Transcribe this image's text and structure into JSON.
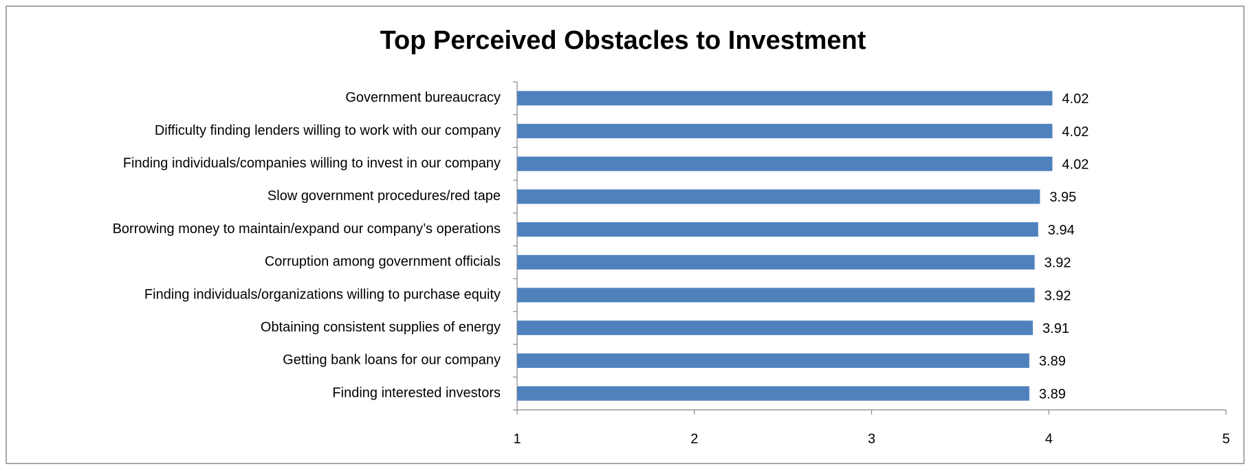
{
  "chart_data": {
    "type": "bar",
    "orientation": "horizontal",
    "title": "Top Perceived Obstacles to Investment",
    "categories": [
      "Government bureaucracy",
      "Difficulty finding lenders willing to work with our company",
      "Finding individuals/companies willing to invest in our company",
      "Slow government procedures/red tape",
      "Borrowing money to maintain/expand our company’s operations",
      "Corruption among government officials",
      "Finding individuals/organizations willing to purchase equity",
      "Obtaining consistent supplies of energy",
      "Getting bank loans for our company",
      "Finding interested investors"
    ],
    "values": [
      4.02,
      4.02,
      4.02,
      3.95,
      3.94,
      3.92,
      3.92,
      3.91,
      3.89,
      3.89
    ],
    "color": "#4f81bd",
    "xlim": [
      1,
      5
    ],
    "xticks": [
      1,
      2,
      3,
      4,
      5
    ]
  }
}
